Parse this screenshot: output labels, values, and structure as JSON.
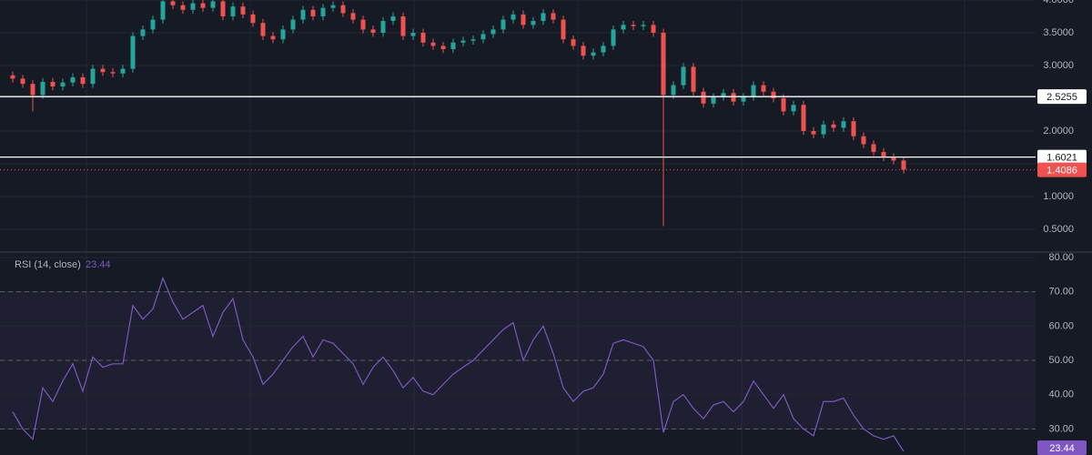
{
  "chart_data": [
    {
      "type": "candlestick",
      "open": [
        2.85,
        2.8,
        2.72,
        2.55,
        2.75,
        2.68,
        2.74,
        2.82,
        2.72,
        2.95,
        2.9,
        2.88,
        2.95,
        3.45,
        3.55,
        3.7,
        3.98,
        3.92,
        3.85,
        3.95,
        3.88,
        3.98,
        3.75,
        3.9,
        3.78,
        3.65,
        3.45,
        3.4,
        3.55,
        3.7,
        3.85,
        3.75,
        3.88,
        3.92,
        3.8,
        3.7,
        3.55,
        3.5,
        3.68,
        3.75,
        3.45,
        3.5,
        3.35,
        3.3,
        3.25,
        3.35,
        3.38,
        3.4,
        3.48,
        3.55,
        3.7,
        3.78,
        3.62,
        3.68,
        3.8,
        3.7,
        3.4,
        3.3,
        3.15,
        3.2,
        3.3,
        3.55,
        3.62,
        3.6,
        3.62,
        3.5,
        2.55,
        2.7,
        2.98,
        2.6,
        2.42,
        2.52,
        2.58,
        2.45,
        2.52,
        2.7,
        2.6,
        2.5,
        2.3,
        2.4,
        2.0,
        1.95,
        2.1,
        2.05,
        2.15,
        1.92,
        1.8,
        1.68,
        1.6,
        1.55
      ],
      "high": [
        2.91,
        2.86,
        2.78,
        2.81,
        2.81,
        2.8,
        2.88,
        2.88,
        3.01,
        3.01,
        2.96,
        3.01,
        3.51,
        3.61,
        3.76,
        4.04,
        4.04,
        3.98,
        4.01,
        4.01,
        4.04,
        4.04,
        3.96,
        3.96,
        3.84,
        3.71,
        3.51,
        3.61,
        3.76,
        3.91,
        3.91,
        3.94,
        3.98,
        3.98,
        3.86,
        3.76,
        3.61,
        3.74,
        3.81,
        3.81,
        3.56,
        3.56,
        3.41,
        3.36,
        3.41,
        3.44,
        3.46,
        3.54,
        3.61,
        3.76,
        3.84,
        3.84,
        3.74,
        3.86,
        3.86,
        3.76,
        3.46,
        3.36,
        3.26,
        3.36,
        3.61,
        3.68,
        3.68,
        3.68,
        3.68,
        3.56,
        2.76,
        3.04,
        3.04,
        2.66,
        2.58,
        2.64,
        2.64,
        2.58,
        2.76,
        2.76,
        2.66,
        2.56,
        2.46,
        2.46,
        2.06,
        2.16,
        2.16,
        2.21,
        2.21,
        1.98,
        1.86,
        1.74,
        1.66,
        1.61
      ],
      "low": [
        2.74,
        2.66,
        2.3,
        2.49,
        2.62,
        2.62,
        2.68,
        2.66,
        2.66,
        2.84,
        2.82,
        2.82,
        2.89,
        3.39,
        3.49,
        3.64,
        3.86,
        3.79,
        3.79,
        3.82,
        3.82,
        3.69,
        3.69,
        3.72,
        3.59,
        3.39,
        3.34,
        3.34,
        3.49,
        3.64,
        3.69,
        3.69,
        3.82,
        3.74,
        3.64,
        3.49,
        3.44,
        3.44,
        3.62,
        3.39,
        3.39,
        3.29,
        3.24,
        3.19,
        3.19,
        3.29,
        3.32,
        3.34,
        3.42,
        3.49,
        3.64,
        3.56,
        3.56,
        3.62,
        3.64,
        3.34,
        3.24,
        3.09,
        3.09,
        3.14,
        3.24,
        3.49,
        3.54,
        3.54,
        3.44,
        0.55,
        2.49,
        2.64,
        2.54,
        2.36,
        2.36,
        2.46,
        2.39,
        2.39,
        2.46,
        2.54,
        2.44,
        2.24,
        2.24,
        1.94,
        1.89,
        1.89,
        1.99,
        1.99,
        1.86,
        1.74,
        1.62,
        1.54,
        1.49,
        1.35
      ],
      "close": [
        2.8,
        2.72,
        2.55,
        2.75,
        2.68,
        2.74,
        2.82,
        2.72,
        2.95,
        2.9,
        2.88,
        2.95,
        3.45,
        3.55,
        3.7,
        3.98,
        3.92,
        3.85,
        3.95,
        3.88,
        3.98,
        3.75,
        3.9,
        3.78,
        3.65,
        3.45,
        3.4,
        3.55,
        3.7,
        3.85,
        3.75,
        3.88,
        3.92,
        3.8,
        3.7,
        3.55,
        3.5,
        3.68,
        3.75,
        3.45,
        3.5,
        3.35,
        3.3,
        3.25,
        3.35,
        3.38,
        3.4,
        3.48,
        3.55,
        3.7,
        3.78,
        3.62,
        3.68,
        3.8,
        3.7,
        3.4,
        3.3,
        3.15,
        3.2,
        3.3,
        3.55,
        3.62,
        3.6,
        3.62,
        3.5,
        2.55,
        2.7,
        2.98,
        2.6,
        2.42,
        2.52,
        2.58,
        2.45,
        2.52,
        2.7,
        2.6,
        2.5,
        2.3,
        2.4,
        2.0,
        1.95,
        2.1,
        2.05,
        2.15,
        1.92,
        1.8,
        1.68,
        1.6,
        1.55,
        1.41
      ],
      "up_color": "#26a69a",
      "down_color": "#ef5350",
      "ylim": [
        0.2,
        4.0
      ],
      "yticks": [
        {
          "value": 0.5,
          "label": "0.5000"
        },
        {
          "value": 1.0,
          "label": "1.0000"
        },
        {
          "value": 1.5,
          "label": "1.5000"
        },
        {
          "value": 2.0,
          "label": "2.0000"
        },
        {
          "value": 2.5,
          "label": "2.5000"
        },
        {
          "value": 3.0,
          "label": "3.0000"
        },
        {
          "value": 3.5,
          "label": "3.5000"
        },
        {
          "value": 4.0,
          "label": "4.0000"
        }
      ],
      "levels": [
        2.5255,
        1.6021
      ],
      "level_color": "#ffffff",
      "last_price": 1.4086,
      "last_price_color": "#ef5350"
    },
    {
      "type": "line",
      "title": "RSI (14, close)",
      "color": "#7e57c2",
      "values": [
        35,
        30,
        27,
        42,
        38,
        44,
        49,
        41,
        51,
        48,
        49,
        49,
        66,
        62,
        65,
        74,
        67,
        62,
        64,
        66,
        57,
        64,
        68,
        56,
        51,
        43,
        46,
        50,
        54,
        57,
        51,
        56,
        55,
        52,
        49,
        43,
        48,
        51,
        47,
        42,
        45,
        41,
        40,
        43,
        46,
        48,
        50,
        53,
        56,
        59,
        61,
        50,
        56,
        60,
        52,
        42,
        38,
        41,
        42,
        46,
        55,
        56,
        55,
        54,
        50,
        29,
        38,
        40,
        36,
        33,
        37,
        38,
        35,
        38,
        44,
        40,
        36,
        40,
        33,
        30,
        28,
        38,
        38,
        39,
        34,
        30,
        28,
        27,
        28,
        23.44
      ],
      "ylim": [
        22.4,
        80
      ],
      "yticks": [
        {
          "value": 30,
          "label": "30.00"
        },
        {
          "value": 40,
          "label": "40.00"
        },
        {
          "value": 50,
          "label": "50.00"
        },
        {
          "value": 60,
          "label": "60.00"
        },
        {
          "value": 70,
          "label": "70.00"
        },
        {
          "value": 80,
          "label": "80.00"
        }
      ],
      "levels": [
        30,
        50,
        70
      ]
    }
  ]
}
